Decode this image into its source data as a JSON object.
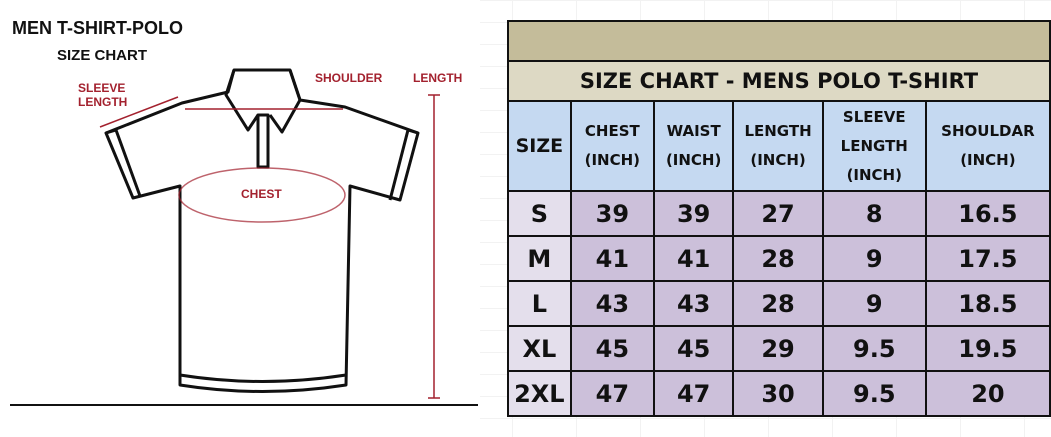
{
  "diagram": {
    "title": "MEN T-SHIRT-POLO",
    "subtitle": "SIZE CHART",
    "labels": {
      "sleeve_length": [
        "SLEEVE",
        "LENGTH"
      ],
      "shoulder": "SHOULDER",
      "length": "LENGTH",
      "chest": "CHEST"
    },
    "accent_color": "#a3212e"
  },
  "table": {
    "title": "SIZE CHART - MENS POLO T-SHIRT",
    "headers": [
      [
        "SIZE"
      ],
      [
        "CHEST",
        "(INCH)"
      ],
      [
        "WAIST",
        "(INCH)"
      ],
      [
        "LENGTH",
        "(INCH)"
      ],
      [
        "SLEEVE",
        "LENGTH",
        "(INCH)"
      ],
      [
        "SHOULDAR",
        "(INCH)"
      ]
    ],
    "rows": [
      [
        "S",
        "39",
        "39",
        "27",
        "8",
        "16.5"
      ],
      [
        "M",
        "41",
        "41",
        "28",
        "9",
        "17.5"
      ],
      [
        "L",
        "43",
        "43",
        "28",
        "9",
        "18.5"
      ],
      [
        "XL",
        "45",
        "45",
        "29",
        "9.5",
        "19.5"
      ],
      [
        "2XL",
        "47",
        "47",
        "30",
        "9.5",
        "20"
      ]
    ],
    "colors": {
      "top_band": "#c4bc9a",
      "title_band": "#ddd9c4",
      "header": "#c5d9f1",
      "size_col": "#e4dfec",
      "values": "#ccc0da"
    }
  }
}
